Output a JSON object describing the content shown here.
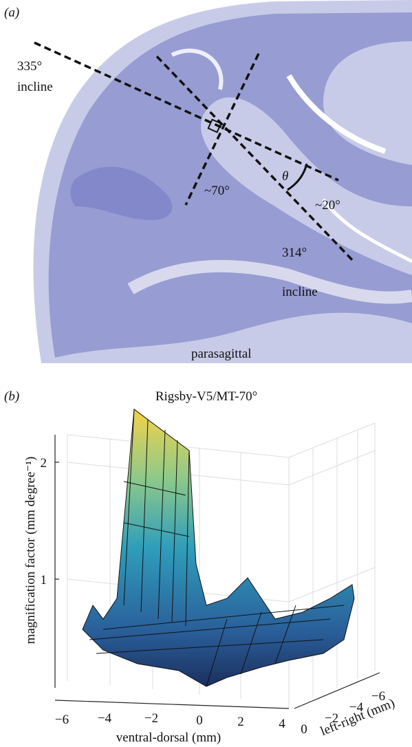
{
  "panel_a": {
    "label": "(a)",
    "annotations": [
      "335°",
      "incline",
      "~70°",
      "θ",
      "~20°",
      "314°",
      "incline",
      "parasagittal"
    ]
  },
  "panel_b": {
    "label": "(b)",
    "title": "Rigsby-V5/MT-70°",
    "z_axis": {
      "label": "magnification factor (mm degree⁻¹)",
      "ticks": [
        "1",
        "2"
      ]
    },
    "x_axis": {
      "label": "ventral-dorsal (mm)",
      "ticks": [
        "−6",
        "−4",
        "−2",
        "0",
        "2",
        "4"
      ]
    },
    "y_axis": {
      "label": "left-right (mm)",
      "ticks": [
        "0",
        "−2",
        "−4",
        "−6"
      ]
    }
  }
}
